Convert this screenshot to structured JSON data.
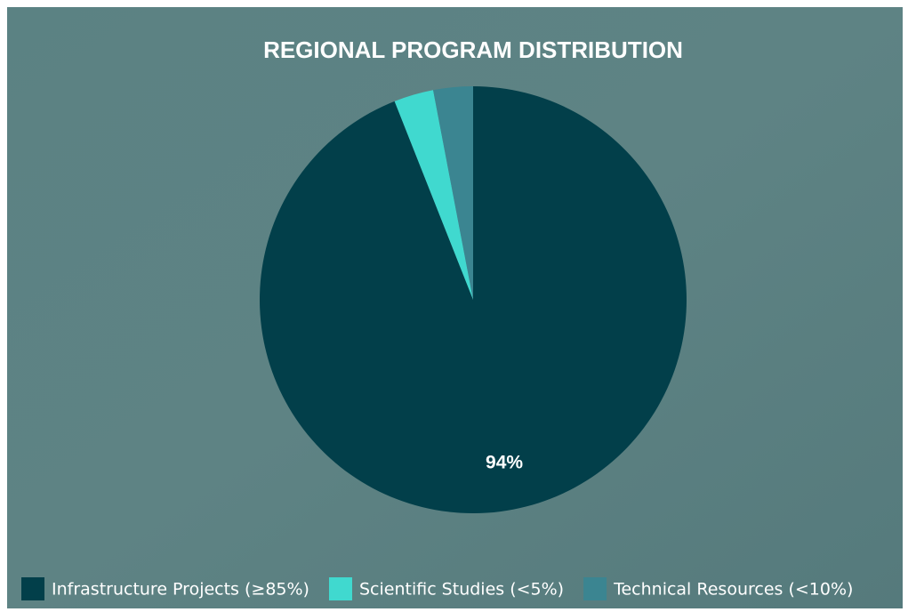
{
  "chart_data": {
    "type": "pie",
    "title": "REGIONAL PROGRAM DISTRIBUTION",
    "categories": [
      "Infrastructure Projects (≥85%)",
      "Scientific Studies (<5%)",
      "Technical Resources (<10%)"
    ],
    "values": [
      94,
      3,
      3
    ],
    "value_labels": [
      "94%",
      null,
      null
    ],
    "colors": [
      "#023f4a",
      "#40d9cf",
      "#3b8591"
    ],
    "legend": "bottom"
  }
}
